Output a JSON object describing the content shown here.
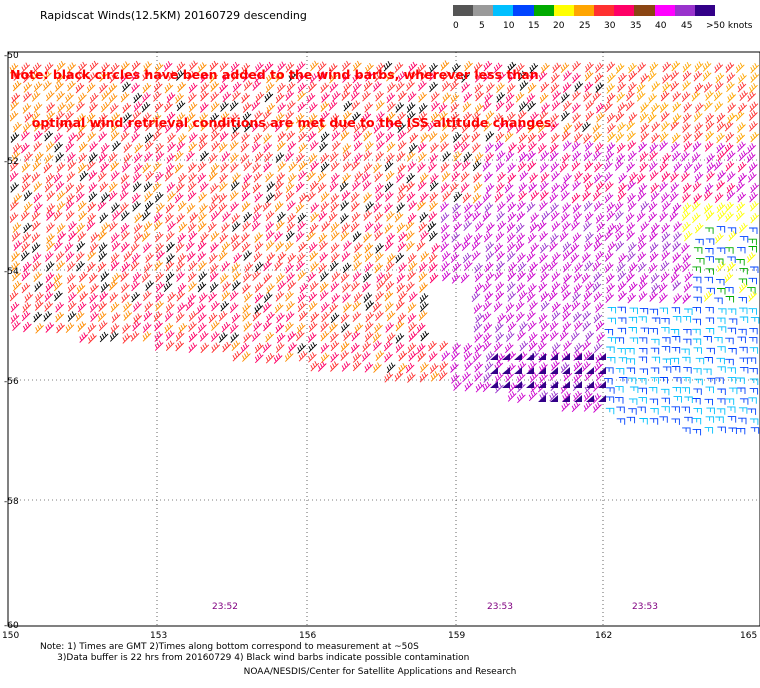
{
  "title": "Rapidscat Winds(12.5KM) 20160729 descending",
  "note_red": {
    "line1": "Note: black circles have been added to the wind barbs, wherever less than",
    "line2": "     optimal wind retrieval conditions are met due to the ISS altitude changes."
  },
  "colorbar": {
    "units_label": ">50 knots",
    "ticks": [
      "0",
      "5",
      "10",
      "15",
      "20",
      "25",
      "30",
      "35",
      "40",
      "45"
    ],
    "colors": [
      "#555555",
      "#9a9a9a",
      "#00bfff",
      "#0044ff",
      "#00aa00",
      "#ffff00",
      "#ffa500",
      "#ff3030",
      "#ff0066",
      "#8b4513",
      "#ff00ff",
      "#9932cc",
      "#330088"
    ]
  },
  "map": {
    "lat_labels": [
      "-50",
      "-52",
      "-54",
      "-56",
      "-58",
      "-60"
    ],
    "lon_labels": [
      "150",
      "153",
      "156",
      "159",
      "162",
      "165"
    ],
    "time_labels": [
      "23:52",
      "23:53",
      "23:53"
    ]
  },
  "footnotes": {
    "line1": "Note: 1) Times are GMT 2)Times along bottom correspond to measurement at ~50S",
    "line2": "      3)Data buffer is 22 hrs from 20160729 4) Black wind barbs indicate possible contamination"
  },
  "credit": "NOAA/NESDIS/Center for Satellite Applications and Research"
}
